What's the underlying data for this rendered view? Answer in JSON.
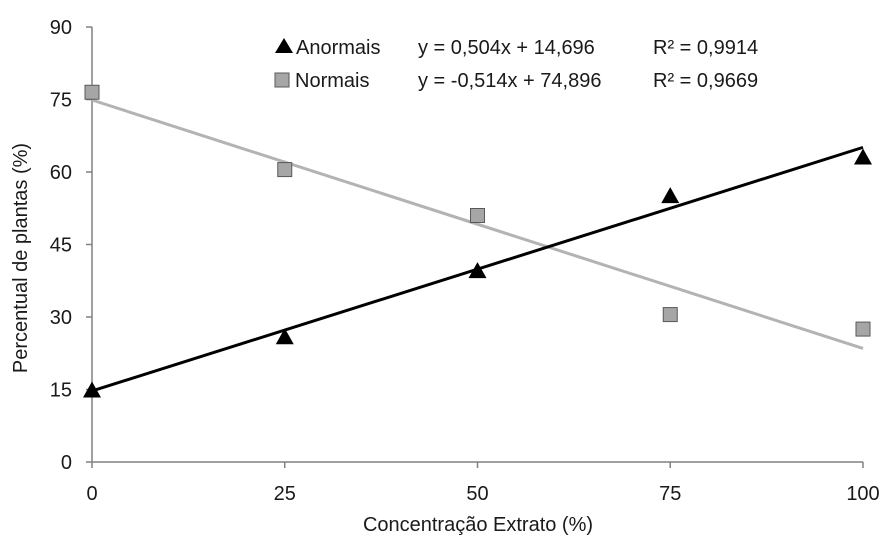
{
  "chart_data": {
    "type": "scatter",
    "title": "",
    "xlabel": "Concentração Extrato (%)",
    "ylabel": "Percentual de plantas (%)",
    "xlim": [
      0,
      100
    ],
    "ylim": [
      0,
      90
    ],
    "xticks": [
      "0",
      "25",
      "50",
      "75",
      "100"
    ],
    "yticks": [
      "0",
      "15",
      "30",
      "45",
      "60",
      "75",
      "90"
    ],
    "x": [
      0,
      25,
      50,
      75,
      100
    ],
    "grid": false,
    "legend_position": "top",
    "series": [
      {
        "name": "Anormais",
        "marker": "triangle",
        "color": "#000000",
        "values": [
          14.8,
          25.8,
          39.5,
          55.0,
          63.0
        ],
        "trendline": {
          "slope": 0.504,
          "intercept": 14.696,
          "equation": "y = 0,504x + 14,696",
          "r2": "R² = 0,9914",
          "color": "#000000"
        }
      },
      {
        "name": "Normais",
        "marker": "square",
        "color": "#a6a6a6",
        "values": [
          76.5,
          60.5,
          51.0,
          30.5,
          27.5
        ],
        "trendline": {
          "slope": -0.514,
          "intercept": 74.896,
          "equation": "y = -0,514x + 74,896",
          "r2": "R² = 0,9669",
          "color": "#b3b3b3"
        }
      }
    ]
  }
}
